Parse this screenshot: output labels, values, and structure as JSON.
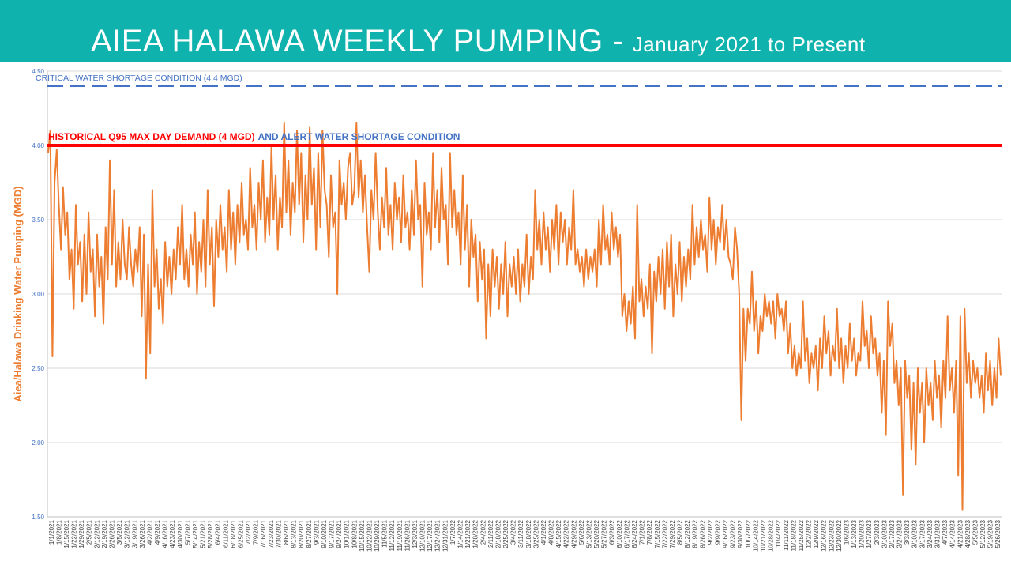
{
  "slide": {
    "title_main": "AIEA HALAWA WEEKLY PUMPING",
    "title_sep": " - ",
    "title_sub": "January 2021 to Present"
  },
  "colors": {
    "header": "#0fb2ac",
    "series": "#ed7d31",
    "critical_line": "#4472c4",
    "alert_line": "#ff0000",
    "axis_text": "#4472c4",
    "grid": "#d9d9d9"
  },
  "chart_data": {
    "type": "line",
    "title": "",
    "ylabel": "Aiea/Halawa Drinking Water Pumping (MGD)",
    "xlabel": "",
    "ylim": [
      1.5,
      4.5
    ],
    "yticks": [
      "1.50",
      "2.00",
      "2.50",
      "3.00",
      "3.50",
      "4.00",
      "4.50"
    ],
    "ytick_values": [
      1.5,
      2.0,
      2.5,
      3.0,
      3.5,
      4.0,
      4.5
    ],
    "grid": true,
    "x_start": "1/1/2021",
    "x_end": "5/31/2023",
    "x_tick_labels": [
      "1/1/2021",
      "1/8/2021",
      "1/15/2021",
      "1/22/2021",
      "1/29/2021",
      "2/5/2021",
      "2/12/2021",
      "2/19/2021",
      "2/26/2021",
      "3/5/2021",
      "3/12/2021",
      "3/19/2021",
      "3/26/2021",
      "4/2/2021",
      "4/9/2021",
      "4/16/2021",
      "4/23/2021",
      "4/30/2021",
      "5/7/2021",
      "5/14/2021",
      "5/21/2021",
      "5/28/2021",
      "6/4/2021",
      "6/11/2021",
      "6/18/2021",
      "6/25/2021",
      "7/2/2021",
      "7/9/2021",
      "7/16/2021",
      "7/23/2021",
      "7/30/2021",
      "8/6/2021",
      "8/13/2021",
      "8/20/2021",
      "8/27/2021",
      "9/3/2021",
      "9/10/2021",
      "9/17/2021",
      "9/24/2021",
      "10/1/2021",
      "10/8/2021",
      "10/15/2021",
      "10/22/2021",
      "10/29/2021",
      "11/5/2021",
      "11/12/2021",
      "11/19/2021",
      "11/26/2021",
      "12/3/2021",
      "12/10/2021",
      "12/17/2021",
      "12/24/2021",
      "12/31/2021",
      "1/7/2022",
      "1/14/2022",
      "1/21/2022",
      "1/28/2022",
      "2/4/2022",
      "2/11/2022",
      "2/18/2022",
      "2/25/2022",
      "3/4/2022",
      "3/11/2022",
      "3/18/2022",
      "3/25/2022",
      "4/1/2022",
      "4/8/2022",
      "4/15/2022",
      "4/22/2022",
      "4/29/2022",
      "5/6/2022",
      "5/13/2022",
      "5/20/2022",
      "5/27/2022",
      "6/3/2022",
      "6/10/2022",
      "6/17/2022",
      "6/24/2022",
      "7/1/2022",
      "7/8/2022",
      "7/15/2022",
      "7/22/2022",
      "7/29/2022",
      "8/5/2022",
      "8/12/2022",
      "8/19/2022",
      "8/26/2022",
      "9/2/2022",
      "9/9/2022",
      "9/16/2022",
      "9/23/2022",
      "9/30/2022",
      "10/7/2022",
      "10/14/2022",
      "10/21/2022",
      "10/28/2022",
      "11/4/2022",
      "11/11/2022",
      "11/18/2022",
      "11/25/2022",
      "12/2/2022",
      "12/9/2022",
      "12/16/2022",
      "12/23/2022",
      "12/30/2022",
      "1/6/2023",
      "1/13/2023",
      "1/20/2023",
      "1/27/2023",
      "2/3/2023",
      "2/10/2023",
      "2/17/2023",
      "2/24/2023",
      "3/3/2023",
      "3/10/2023",
      "3/17/2023",
      "3/24/2023",
      "3/31/2023",
      "4/7/2023",
      "4/14/2023",
      "4/21/2023",
      "4/28/2023",
      "5/5/2023",
      "5/12/2023",
      "5/19/2023",
      "5/26/2023"
    ],
    "series": [
      {
        "values": [
          3.95,
          4.1,
          2.58,
          3.75,
          3.97,
          3.6,
          3.3,
          3.72,
          3.4,
          3.55,
          3.1,
          3.3,
          2.9,
          3.6,
          3.2,
          3.35,
          2.95,
          3.4,
          3.0,
          3.55,
          3.15,
          3.3,
          2.85,
          3.4,
          3.05,
          3.25,
          2.8,
          3.45,
          3.1,
          3.9,
          3.2,
          3.7,
          3.05,
          3.35,
          3.1,
          3.5,
          3.2,
          3.1,
          3.45,
          3.2,
          3.05,
          3.3,
          3.15,
          3.45,
          2.85,
          3.4,
          2.43,
          3.2,
          2.6,
          3.7,
          3.05,
          3.3,
          2.9,
          3.1,
          2.8,
          3.35,
          3.05,
          3.25,
          3.0,
          3.3,
          3.1,
          3.45,
          3.2,
          3.6,
          3.1,
          3.3,
          3.05,
          3.4,
          3.2,
          3.55,
          3.0,
          3.35,
          3.15,
          3.5,
          3.05,
          3.7,
          3.2,
          3.45,
          2.92,
          3.5,
          3.25,
          3.6,
          3.3,
          3.45,
          3.15,
          3.7,
          3.3,
          3.55,
          3.2,
          3.6,
          3.35,
          3.75,
          3.4,
          3.5,
          3.3,
          3.85,
          3.45,
          3.6,
          3.3,
          3.75,
          3.5,
          3.9,
          3.35,
          3.65,
          3.4,
          4.0,
          3.5,
          3.8,
          3.3,
          3.65,
          3.45,
          4.15,
          3.55,
          3.9,
          3.4,
          3.75,
          3.55,
          4.1,
          3.6,
          3.95,
          3.35,
          3.8,
          3.5,
          4.12,
          3.6,
          3.85,
          3.3,
          3.95,
          3.45,
          4.1,
          3.7,
          3.6,
          3.25,
          3.8,
          3.45,
          3.55,
          3.0,
          3.9,
          3.6,
          3.75,
          3.5,
          3.85,
          3.95,
          3.6,
          3.7,
          4.15,
          3.65,
          3.9,
          3.55,
          3.8,
          3.45,
          3.15,
          3.7,
          3.5,
          3.95,
          3.55,
          3.3,
          3.65,
          3.45,
          3.85,
          3.4,
          3.6,
          3.3,
          3.75,
          3.5,
          3.65,
          3.35,
          3.8,
          3.45,
          3.55,
          3.3,
          3.7,
          3.4,
          3.9,
          3.5,
          3.6,
          3.05,
          3.75,
          3.4,
          3.55,
          3.3,
          3.95,
          3.45,
          3.7,
          3.35,
          3.85,
          3.5,
          3.6,
          3.2,
          3.95,
          3.45,
          3.7,
          3.4,
          3.55,
          3.2,
          3.8,
          3.3,
          3.6,
          3.05,
          3.5,
          3.25,
          3.4,
          2.95,
          3.35,
          3.1,
          3.3,
          2.7,
          3.2,
          2.85,
          3.3,
          3.05,
          3.25,
          2.9,
          3.2,
          3.0,
          3.35,
          2.85,
          3.2,
          3.05,
          3.25,
          3.0,
          3.3,
          2.95,
          3.2,
          3.05,
          3.4,
          3.0,
          3.25,
          3.1,
          3.7,
          3.3,
          3.5,
          3.2,
          3.55,
          3.3,
          3.45,
          3.15,
          3.5,
          3.3,
          3.6,
          3.2,
          3.55,
          3.35,
          3.5,
          3.2,
          3.45,
          3.3,
          3.7,
          3.2,
          3.3,
          3.15,
          3.25,
          3.05,
          3.3,
          3.1,
          3.25,
          3.15,
          3.3,
          3.05,
          3.5,
          3.2,
          3.6,
          3.3,
          3.4,
          3.2,
          3.55,
          3.3,
          3.45,
          3.25,
          3.4,
          2.85,
          3.0,
          2.75,
          2.95,
          2.8,
          3.05,
          2.7,
          3.6,
          2.95,
          3.1,
          2.85,
          3.05,
          2.9,
          3.2,
          2.6,
          3.15,
          2.95,
          3.25,
          3.0,
          3.3,
          2.9,
          3.35,
          3.05,
          3.4,
          2.85,
          3.2,
          3.0,
          3.35,
          2.95,
          3.25,
          3.05,
          3.3,
          3.1,
          3.6,
          3.2,
          3.45,
          3.25,
          3.5,
          3.3,
          3.4,
          3.15,
          3.65,
          3.3,
          3.5,
          3.2,
          3.45,
          3.35,
          3.6,
          3.3,
          3.5,
          3.25,
          3.2,
          3.1,
          3.45,
          3.3,
          3.0,
          2.15,
          2.9,
          2.55,
          2.9,
          2.8,
          3.15,
          2.75,
          2.95,
          2.6,
          2.85,
          2.75,
          3.0,
          2.85,
          2.95,
          2.8,
          2.95,
          2.7,
          3.0,
          2.85,
          2.9,
          2.75,
          2.95,
          2.6,
          2.8,
          2.5,
          2.65,
          2.45,
          2.6,
          2.5,
          2.95,
          2.55,
          2.7,
          2.4,
          2.6,
          2.5,
          2.65,
          2.35,
          2.7,
          2.5,
          2.85,
          2.6,
          2.75,
          2.45,
          2.65,
          2.55,
          2.9,
          2.5,
          2.7,
          2.4,
          2.65,
          2.5,
          2.8,
          2.55,
          2.7,
          2.45,
          2.6,
          2.55,
          2.95,
          2.65,
          2.75,
          2.5,
          2.85,
          2.6,
          2.7,
          2.45,
          2.6,
          2.2,
          2.55,
          2.05,
          2.95,
          2.65,
          2.8,
          2.4,
          2.55,
          2.25,
          2.5,
          1.65,
          2.55,
          2.3,
          2.45,
          1.95,
          2.4,
          1.85,
          2.5,
          2.2,
          2.4,
          2.0,
          2.5,
          2.25,
          2.4,
          2.15,
          2.55,
          2.3,
          2.45,
          2.1,
          2.55,
          2.3,
          2.85,
          2.35,
          2.5,
          2.2,
          2.55,
          1.78,
          2.85,
          1.55,
          2.9,
          2.4,
          2.6,
          2.3,
          2.55,
          2.4,
          2.5,
          2.3,
          2.45,
          2.2,
          2.6,
          2.35,
          2.55,
          2.25,
          2.5,
          2.3,
          2.7,
          2.45
        ]
      }
    ],
    "reference_lines": [
      {
        "label": "CRITICAL WATER SHORTAGE CONDITION (4.4 MGD)",
        "y": 4.4,
        "style": "dashed"
      },
      {
        "label": "HISTORICAL Q95 MAX DAY DEMAND (4 MGD)",
        "label2": "AND ALERT WATER SHORTAGE CONDITION",
        "y": 4.0,
        "style": "solid"
      }
    ]
  }
}
